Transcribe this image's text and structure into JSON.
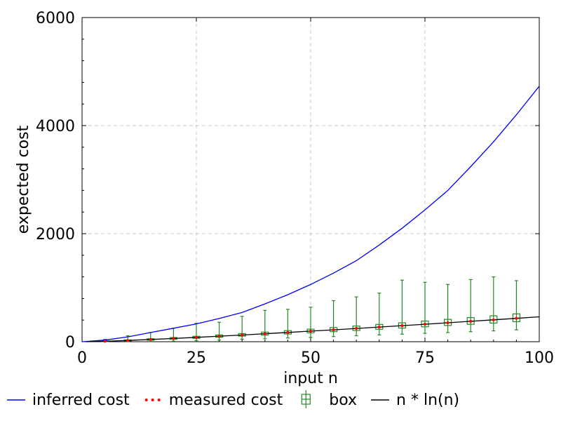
{
  "chart_data": {
    "type": "line",
    "title": "",
    "xlabel": "input n",
    "ylabel": "expected cost",
    "xlim": [
      0,
      100
    ],
    "ylim": [
      0,
      6000
    ],
    "x_ticks": [
      0,
      25,
      50,
      75,
      100
    ],
    "x_tick_labels": [
      "0",
      "25",
      "50",
      "75",
      "100"
    ],
    "y_ticks": [
      0,
      2000,
      4000,
      6000
    ],
    "y_tick_labels": [
      "0",
      "2000",
      "4000",
      "6000"
    ],
    "grid": true,
    "legend_position": "bottom",
    "series": [
      {
        "name": "inferred cost",
        "style": "line",
        "color": "#0000ff",
        "x": [
          0,
          5,
          10,
          15,
          20,
          25,
          30,
          35,
          40,
          45,
          50,
          55,
          60,
          65,
          70,
          75,
          80,
          85,
          90,
          95,
          100
        ],
        "y": [
          0,
          30,
          90,
          170,
          250,
          330,
          430,
          540,
          700,
          870,
          1060,
          1270,
          1500,
          1790,
          2100,
          2440,
          2800,
          3240,
          3700,
          4200,
          4730
        ]
      },
      {
        "name": "measured cost",
        "style": "dotted",
        "color": "#ff0000",
        "x": [
          5,
          10,
          15,
          20,
          25,
          30,
          35,
          40,
          45,
          50,
          55,
          60,
          65,
          70,
          75,
          80,
          85,
          90,
          95
        ],
        "y": [
          8,
          23,
          40,
          60,
          80,
          102,
          125,
          148,
          171,
          196,
          220,
          246,
          271,
          297,
          324,
          351,
          378,
          405,
          433
        ]
      },
      {
        "name": "box",
        "style": "boxplot",
        "color": "#228b22",
        "boxes": [
          {
            "x": 5,
            "min": 0,
            "q1": 3,
            "median": 8,
            "q3": 14,
            "max": 45
          },
          {
            "x": 10,
            "min": 0,
            "q1": 14,
            "median": 23,
            "q3": 33,
            "max": 110
          },
          {
            "x": 15,
            "min": 5,
            "q1": 28,
            "median": 40,
            "q3": 55,
            "max": 170
          },
          {
            "x": 20,
            "min": 10,
            "q1": 45,
            "median": 60,
            "q3": 78,
            "max": 250
          },
          {
            "x": 25,
            "min": 20,
            "q1": 62,
            "median": 80,
            "q3": 100,
            "max": 340
          },
          {
            "x": 30,
            "min": 30,
            "q1": 82,
            "median": 102,
            "q3": 125,
            "max": 360
          },
          {
            "x": 35,
            "min": 45,
            "q1": 103,
            "median": 125,
            "q3": 150,
            "max": 470
          },
          {
            "x": 40,
            "min": 55,
            "q1": 123,
            "median": 148,
            "q3": 178,
            "max": 580
          },
          {
            "x": 45,
            "min": 70,
            "q1": 143,
            "median": 171,
            "q3": 205,
            "max": 600
          },
          {
            "x": 50,
            "min": 80,
            "q1": 165,
            "median": 196,
            "q3": 232,
            "max": 640
          },
          {
            "x": 55,
            "min": 95,
            "q1": 186,
            "median": 220,
            "q3": 262,
            "max": 760
          },
          {
            "x": 60,
            "min": 110,
            "q1": 208,
            "median": 246,
            "q3": 290,
            "max": 830
          },
          {
            "x": 65,
            "min": 125,
            "q1": 230,
            "median": 271,
            "q3": 320,
            "max": 900
          },
          {
            "x": 70,
            "min": 140,
            "q1": 252,
            "median": 297,
            "q3": 350,
            "max": 1140
          },
          {
            "x": 75,
            "min": 155,
            "q1": 276,
            "median": 324,
            "q3": 382,
            "max": 1100
          },
          {
            "x": 80,
            "min": 170,
            "q1": 300,
            "median": 351,
            "q3": 414,
            "max": 1060
          },
          {
            "x": 85,
            "min": 185,
            "q1": 323,
            "median": 378,
            "q3": 446,
            "max": 1150
          },
          {
            "x": 90,
            "min": 200,
            "q1": 345,
            "median": 405,
            "q3": 480,
            "max": 1200
          },
          {
            "x": 95,
            "min": 220,
            "q1": 370,
            "median": 433,
            "q3": 515,
            "max": 1130
          }
        ]
      },
      {
        "name": "n * ln(n)",
        "style": "line",
        "color": "#000000",
        "x": [
          1,
          5,
          10,
          15,
          20,
          25,
          30,
          35,
          40,
          45,
          50,
          55,
          60,
          65,
          70,
          75,
          80,
          85,
          90,
          95,
          100
        ],
        "y": [
          0,
          8,
          23,
          41,
          60,
          80,
          102,
          124,
          148,
          171,
          196,
          220,
          246,
          271,
          297,
          324,
          351,
          378,
          405,
          433,
          461
        ]
      }
    ]
  }
}
